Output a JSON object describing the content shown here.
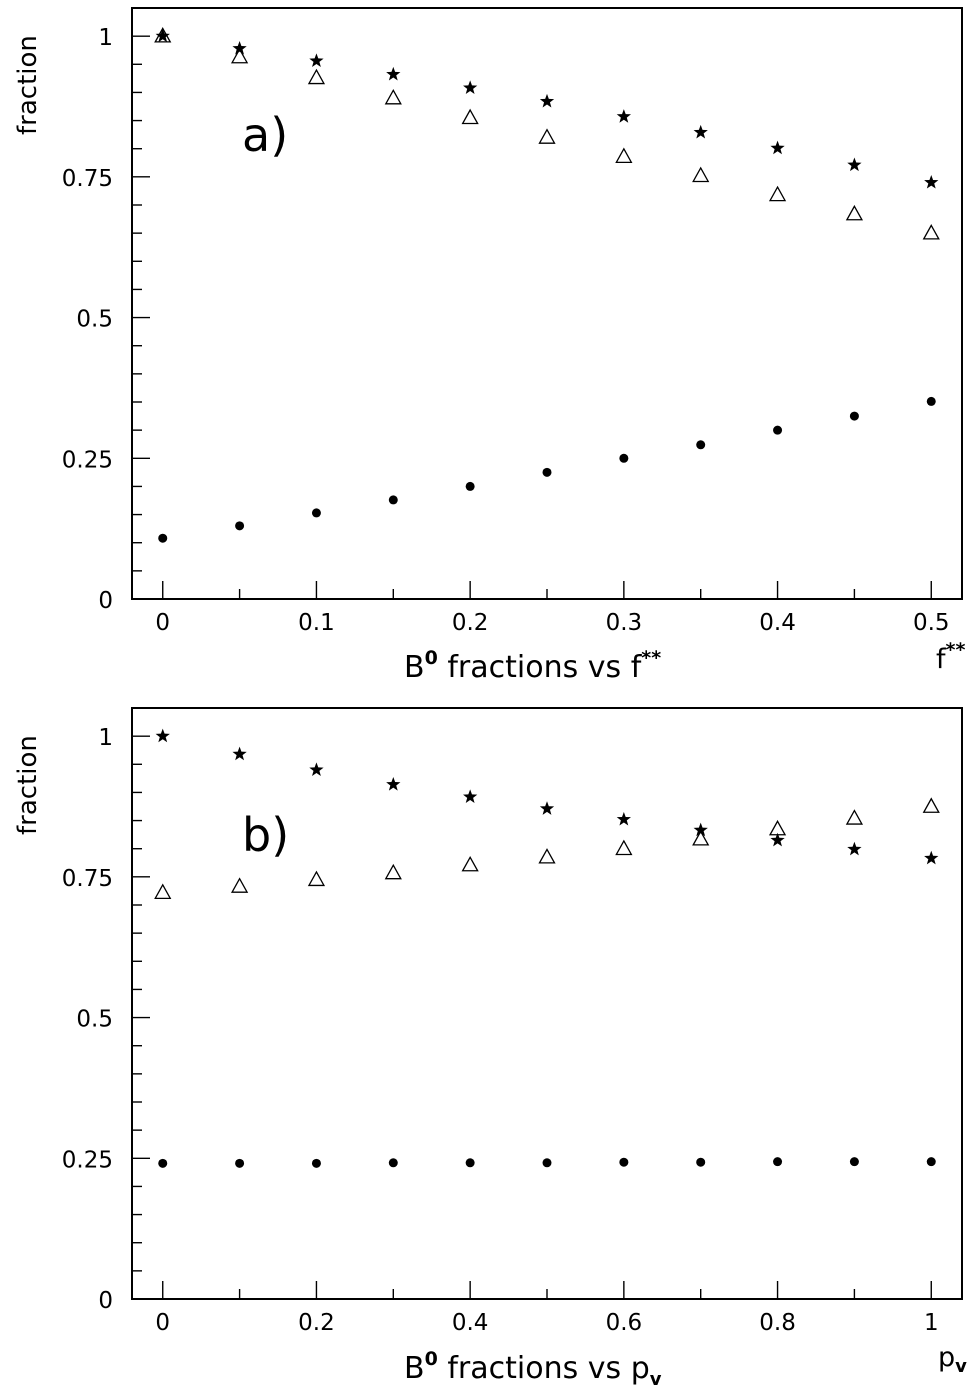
{
  "chart_data": [
    {
      "type": "scatter",
      "panel_label": "a)",
      "xlabel": {
        "prefix": "B",
        "prefix_sup": "0",
        "text": " fractions vs f",
        "text_sup": "**"
      },
      "x_axis_end_label": {
        "text": "f",
        "sup": "**"
      },
      "ylabel": "fraction",
      "xlim": [
        -0.02,
        0.52
      ],
      "ylim": [
        0,
        1.05
      ],
      "xticks": [
        0,
        0.1,
        0.2,
        0.3,
        0.4,
        0.5
      ],
      "xtick_labels": [
        "0",
        "0.1",
        "0.2",
        "0.3",
        "0.4",
        "0.5"
      ],
      "xtick_minor_step": 0.05,
      "yticks": [
        0,
        0.25,
        0.5,
        0.75,
        1
      ],
      "ytick_labels": [
        "0",
        "0.25",
        "0.5",
        "0.75",
        "1"
      ],
      "ytick_minor_step": 0.05,
      "grid": false,
      "x": [
        0,
        0.05,
        0.1,
        0.15,
        0.2,
        0.25,
        0.3,
        0.35,
        0.4,
        0.45,
        0.5
      ],
      "series": [
        {
          "marker": "star",
          "values": [
            1.0,
            0.978,
            0.956,
            0.932,
            0.908,
            0.884,
            0.857,
            0.829,
            0.801,
            0.771,
            0.74
          ]
        },
        {
          "marker": "triangle-open",
          "values": [
            1.0,
            0.963,
            0.926,
            0.89,
            0.855,
            0.82,
            0.786,
            0.752,
            0.718,
            0.684,
            0.65
          ]
        },
        {
          "marker": "circle",
          "values": [
            0.108,
            0.13,
            0.153,
            0.176,
            0.2,
            0.225,
            0.25,
            0.274,
            0.3,
            0.325,
            0.351
          ]
        }
      ]
    },
    {
      "type": "scatter",
      "panel_label": "b)",
      "xlabel": {
        "prefix": "B",
        "prefix_sup": "0",
        "text": " fractions vs p",
        "text_sub": "v"
      },
      "x_axis_end_label": {
        "text": "p",
        "sub": "v"
      },
      "ylabel": "fraction",
      "xlim": [
        -0.04,
        1.04
      ],
      "ylim": [
        0,
        1.05
      ],
      "xticks": [
        0,
        0.2,
        0.4,
        0.6,
        0.8,
        1
      ],
      "xtick_labels": [
        "0",
        "0.2",
        "0.4",
        "0.6",
        "0.8",
        "1"
      ],
      "xtick_minor_step": 0.1,
      "yticks": [
        0,
        0.25,
        0.5,
        0.75,
        1
      ],
      "ytick_labels": [
        "0",
        "0.25",
        "0.5",
        "0.75",
        "1"
      ],
      "ytick_minor_step": 0.05,
      "grid": false,
      "x": [
        0,
        0.1,
        0.2,
        0.3,
        0.4,
        0.5,
        0.6,
        0.7,
        0.8,
        0.9,
        1.0
      ],
      "series": [
        {
          "marker": "star",
          "values": [
            1.0,
            0.968,
            0.94,
            0.914,
            0.892,
            0.871,
            0.852,
            0.833,
            0.815,
            0.799,
            0.783
          ]
        },
        {
          "marker": "triangle-open",
          "values": [
            0.722,
            0.733,
            0.745,
            0.757,
            0.771,
            0.785,
            0.8,
            0.817,
            0.835,
            0.854,
            0.875
          ]
        },
        {
          "marker": "circle",
          "values": [
            0.241,
            0.241,
            0.241,
            0.242,
            0.242,
            0.242,
            0.243,
            0.243,
            0.244,
            0.244,
            0.244
          ]
        }
      ]
    }
  ]
}
